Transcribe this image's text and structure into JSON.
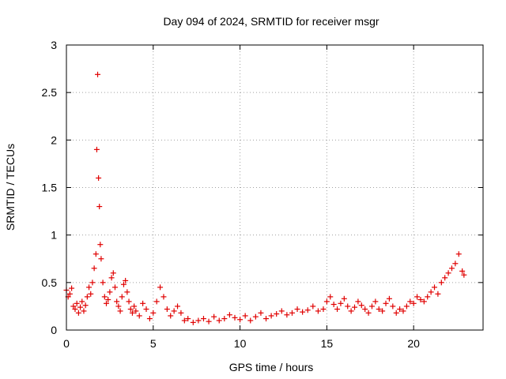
{
  "chart_data": {
    "type": "scatter",
    "title": "Day 094 of 2024, SRMTID for receiver msgr",
    "xlabel": "GPS time / hours",
    "ylabel": "SRMTID / TECUs",
    "xlim": [
      0,
      24
    ],
    "ylim": [
      0,
      3
    ],
    "x_ticks": [
      0,
      5,
      10,
      15,
      20
    ],
    "x_tick_labels": [
      "0",
      "5",
      "10",
      "15",
      "20"
    ],
    "y_ticks": [
      0,
      0.5,
      1,
      1.5,
      2,
      2.5,
      3
    ],
    "y_tick_labels": [
      "0",
      "0.5",
      "1",
      "1.5",
      "2",
      "2.5",
      "3"
    ],
    "grid": true,
    "marker": "+",
    "color": "#e00000",
    "series": [
      {
        "name": "SRMTID",
        "x": [
          0.0,
          0.1,
          0.2,
          0.3,
          0.4,
          0.5,
          0.6,
          0.7,
          0.8,
          0.9,
          1.0,
          1.1,
          1.2,
          1.3,
          1.4,
          1.5,
          1.6,
          1.7,
          1.75,
          1.8,
          1.85,
          1.9,
          1.95,
          2.0,
          2.1,
          2.2,
          2.3,
          2.4,
          2.5,
          2.6,
          2.7,
          2.8,
          2.9,
          3.0,
          3.1,
          3.2,
          3.3,
          3.4,
          3.5,
          3.6,
          3.7,
          3.8,
          3.9,
          4.0,
          4.2,
          4.4,
          4.6,
          4.8,
          5.0,
          5.2,
          5.4,
          5.6,
          5.8,
          6.0,
          6.2,
          6.4,
          6.6,
          6.8,
          7.0,
          7.3,
          7.6,
          7.9,
          8.2,
          8.5,
          8.8,
          9.1,
          9.4,
          9.7,
          10.0,
          10.3,
          10.6,
          10.9,
          11.2,
          11.5,
          11.8,
          12.1,
          12.4,
          12.7,
          13.0,
          13.3,
          13.6,
          13.9,
          14.2,
          14.5,
          14.8,
          15.0,
          15.2,
          15.4,
          15.6,
          15.8,
          16.0,
          16.2,
          16.4,
          16.6,
          16.8,
          17.0,
          17.2,
          17.4,
          17.6,
          17.8,
          18.0,
          18.2,
          18.4,
          18.6,
          18.8,
          19.0,
          19.2,
          19.4,
          19.6,
          19.8,
          20.0,
          20.2,
          20.4,
          20.6,
          20.8,
          21.0,
          21.2,
          21.4,
          21.6,
          21.8,
          22.0,
          22.2,
          22.4,
          22.6,
          22.8,
          22.9
        ],
        "values": [
          0.42,
          0.35,
          0.38,
          0.44,
          0.25,
          0.22,
          0.28,
          0.18,
          0.24,
          0.3,
          0.2,
          0.26,
          0.35,
          0.45,
          0.38,
          0.5,
          0.65,
          0.8,
          1.9,
          2.69,
          1.6,
          1.3,
          0.9,
          0.75,
          0.5,
          0.35,
          0.28,
          0.32,
          0.4,
          0.55,
          0.6,
          0.45,
          0.3,
          0.25,
          0.2,
          0.35,
          0.48,
          0.52,
          0.4,
          0.3,
          0.22,
          0.18,
          0.25,
          0.2,
          0.15,
          0.28,
          0.22,
          0.12,
          0.18,
          0.3,
          0.45,
          0.35,
          0.22,
          0.15,
          0.2,
          0.25,
          0.18,
          0.1,
          0.12,
          0.08,
          0.1,
          0.12,
          0.09,
          0.14,
          0.1,
          0.12,
          0.16,
          0.13,
          0.11,
          0.15,
          0.1,
          0.14,
          0.18,
          0.12,
          0.15,
          0.17,
          0.2,
          0.16,
          0.18,
          0.22,
          0.19,
          0.21,
          0.25,
          0.2,
          0.22,
          0.3,
          0.35,
          0.27,
          0.22,
          0.28,
          0.33,
          0.25,
          0.2,
          0.24,
          0.3,
          0.26,
          0.22,
          0.18,
          0.25,
          0.3,
          0.22,
          0.2,
          0.28,
          0.33,
          0.25,
          0.18,
          0.22,
          0.2,
          0.25,
          0.3,
          0.28,
          0.35,
          0.32,
          0.3,
          0.35,
          0.4,
          0.45,
          0.38,
          0.5,
          0.55,
          0.6,
          0.65,
          0.7,
          0.8,
          0.62,
          0.58
        ]
      }
    ]
  }
}
